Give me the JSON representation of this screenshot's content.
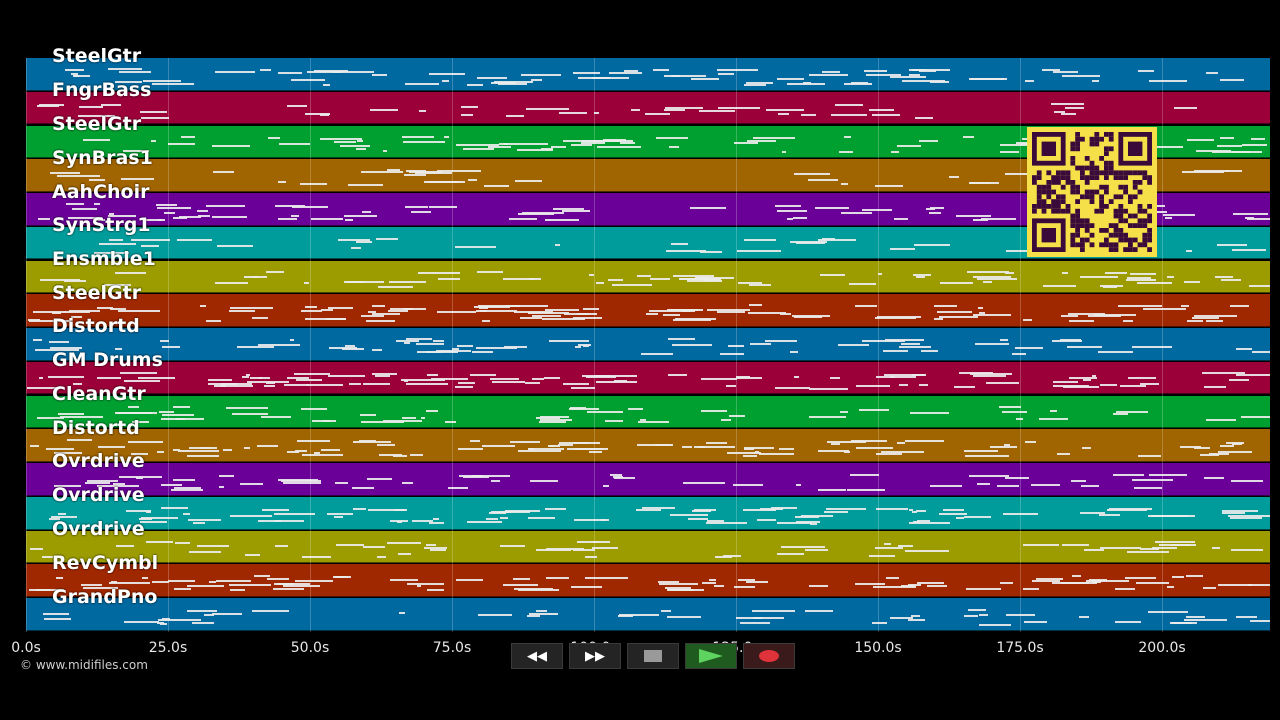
{
  "tracks": [
    {
      "name": "SteelGtr",
      "color": "#0069a0"
    },
    {
      "name": "FngrBass",
      "color": "#9c0038"
    },
    {
      "name": "SteelGtr",
      "color": "#00a030"
    },
    {
      "name": "SynBras1",
      "color": "#a06400"
    },
    {
      "name": "AahChoir",
      "color": "#6a0098"
    },
    {
      "name": "SynStrg1",
      "color": "#009c9c"
    },
    {
      "name": "Ensmble1",
      "color": "#9c9c00"
    },
    {
      "name": "SteelGtr",
      "color": "#a02800"
    },
    {
      "name": "Distortd",
      "color": "#0069a0"
    },
    {
      "name": "GM Drums",
      "color": "#9c0038"
    },
    {
      "name": "CleanGtr",
      "color": "#00a030"
    },
    {
      "name": "Distortd",
      "color": "#a06400"
    },
    {
      "name": "Ovrdrive",
      "color": "#6a0098"
    },
    {
      "name": "Ovrdrive",
      "color": "#009c9c"
    },
    {
      "name": "Ovrdrive",
      "color": "#9c9c00"
    },
    {
      "name": "RevCymbl",
      "color": "#a02800"
    },
    {
      "name": "GrandPno",
      "color": "#0069a0"
    }
  ],
  "timeline": {
    "ticks": [
      "0.0s",
      "25.0s",
      "50.0s",
      "75.0s",
      "100.0s",
      "125.0s",
      "150.0s",
      "175.0s",
      "200.0s"
    ]
  },
  "copyright": "© www.midifiles.com",
  "controls": {
    "rewind": "rewind-icon",
    "fast_forward": "fast-forward-icon",
    "stop": "stop-icon",
    "play": "play-icon",
    "record": "record-icon"
  },
  "qr_code": "qr-code"
}
